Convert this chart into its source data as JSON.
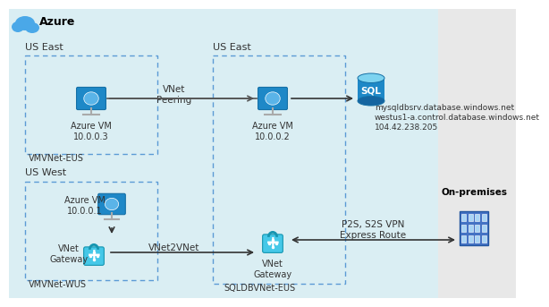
{
  "bg_azure_color": "#daeef3",
  "bg_onprem_color": "#e8e8e8",
  "dashed_box_color": "#5b9bd5",
  "azure_label": "Azure",
  "us_east_top_label": "US East",
  "us_east_top2_label": "US East",
  "us_west_label": "US West",
  "onprem_label": "On-premises",
  "vm1_label": "Azure VM\n10.0.0.3",
  "vm2_label": "Azure VM\n10.0.0.2",
  "vm3_label": "Azure VM\n10.0.0.1",
  "vnet_peering_label": "VNet\nPeering",
  "vnet_gateway1_label": "VNet\nGateway",
  "vnet_gateway2_label": "VNet\nGateway",
  "vmvnet_eus_label": "VMVNet-EUS",
  "vmvnet_wus_label": "VMVNet-WUS",
  "sqldbvnet_eus_label": "SQLDBVNet-EUS",
  "sql_label1": "mysqldbsrv.database.windows.net",
  "sql_label2": "westus1-a.control.database.windows.net",
  "sql_label3": "104.42.238.205",
  "vnet2vnet_label": "VNet2VNet",
  "p2s_label": "P2S, S2S VPN\nExpress Route",
  "arrow_color": "#555555"
}
